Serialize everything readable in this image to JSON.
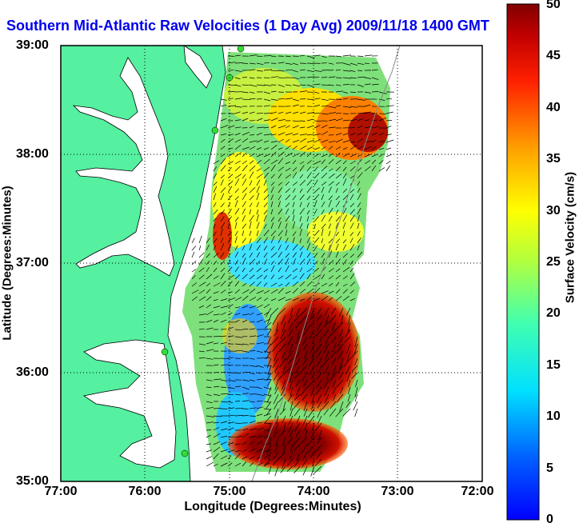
{
  "title": "Southern Mid-Atlantic Raw Velocities (1 Day Avg) 2009/11/18 1400 GMT",
  "axes": {
    "xlabel": "Longitude (Degrees:Minutes)",
    "ylabel": "Latitude (Degrees:Minutes)",
    "x_ticks": [
      "77:00",
      "76:00",
      "75:00",
      "74:00",
      "73:00",
      "72:00"
    ],
    "y_ticks": [
      "39:00",
      "38:00",
      "37:00",
      "36:00",
      "35:00"
    ],
    "xlim": [
      -77,
      -72
    ],
    "ylim": [
      35,
      39
    ],
    "grid": "dotted"
  },
  "colorbar": {
    "label": "Surface Velocity (cm/s)",
    "ticks": [
      "50",
      "45",
      "40",
      "35",
      "30",
      "25",
      "20",
      "15",
      "10",
      "5",
      "0"
    ],
    "range": [
      0,
      50
    ],
    "colormap": "jet"
  },
  "colors": {
    "land": "#55f0a0",
    "title": "#0000ee",
    "station": "#33dd33"
  }
}
